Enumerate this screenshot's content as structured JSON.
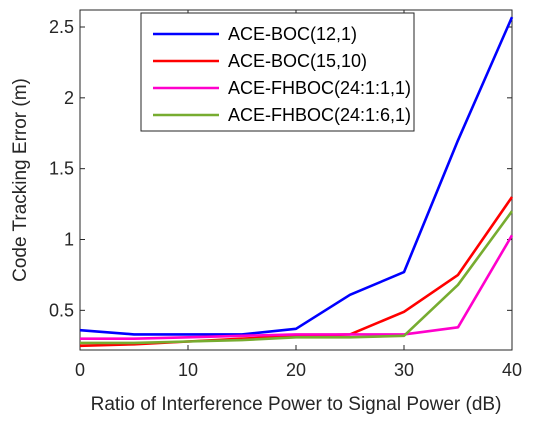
{
  "chart_data": {
    "type": "line",
    "title": "",
    "xlabel": "Ratio of Interference Power to Signal Power (dB)",
    "ylabel": "Code Tracking Error (m)",
    "xlim": [
      0,
      40
    ],
    "ylim": [
      0.22,
      2.62
    ],
    "xticks": [
      0,
      10,
      20,
      30,
      40
    ],
    "xtick_labels": [
      "0",
      "10",
      "20",
      "30",
      "40"
    ],
    "yticks": [
      0.5,
      1,
      1.5,
      2,
      2.5
    ],
    "ytick_labels": [
      "0.5",
      "1",
      "1.5",
      "2",
      "2.5"
    ],
    "grid": false,
    "legend_position": "top-center",
    "x": [
      0,
      5,
      10,
      15,
      20,
      25,
      30,
      35,
      40
    ],
    "series": [
      {
        "name": "ACE-BOC(12,1)",
        "color": "#0000ff",
        "values": [
          0.36,
          0.33,
          0.33,
          0.33,
          0.37,
          0.61,
          0.77,
          1.7,
          2.57
        ]
      },
      {
        "name": "ACE-BOC(15,10)",
        "color": "#ff0000",
        "values": [
          0.25,
          0.26,
          0.28,
          0.3,
          0.32,
          0.33,
          0.49,
          0.75,
          1.3
        ]
      },
      {
        "name": "ACE-FHBOC(24:1:1,1)",
        "color": "#ff00cc",
        "values": [
          0.3,
          0.3,
          0.31,
          0.32,
          0.33,
          0.33,
          0.33,
          0.38,
          1.03
        ]
      },
      {
        "name": "ACE-FHBOC(24:1:6,1)",
        "color": "#77ac30",
        "values": [
          0.27,
          0.27,
          0.28,
          0.29,
          0.31,
          0.31,
          0.32,
          0.68,
          1.2
        ]
      }
    ]
  }
}
